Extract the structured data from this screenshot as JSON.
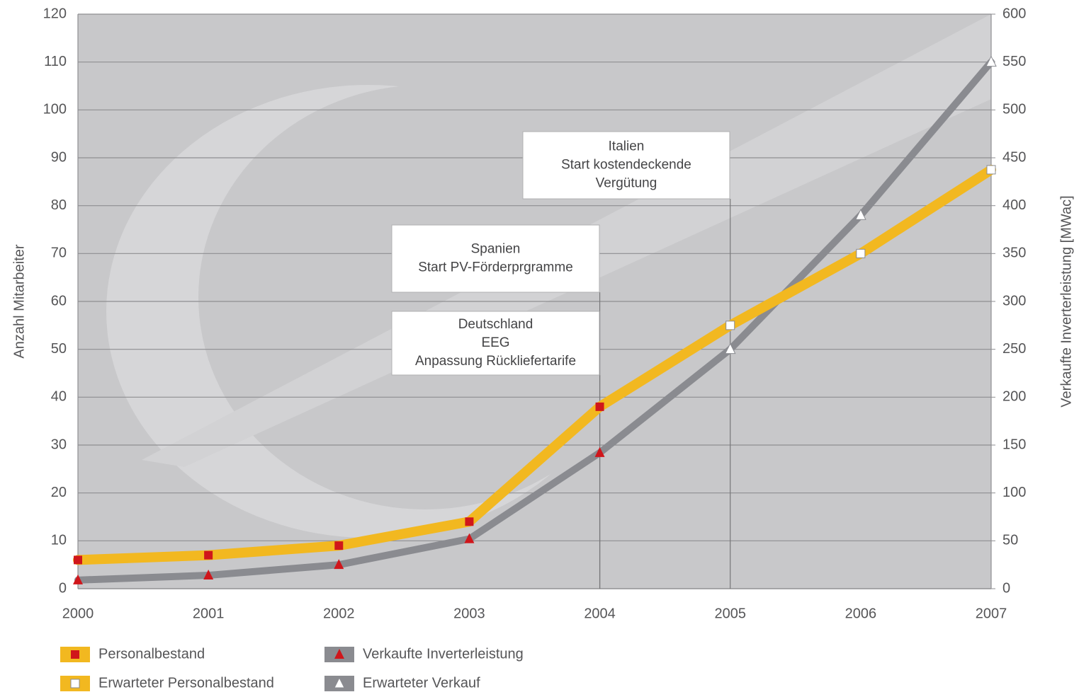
{
  "chart_data": {
    "type": "line",
    "categories": [
      "2000",
      "2001",
      "2002",
      "2003",
      "2004",
      "2005",
      "2006",
      "2007"
    ],
    "ylabel": "Anzahl Mitarbeiter",
    "y2label": "Verkaufte Inverterleistung [MWac]",
    "ylim": [
      0,
      120
    ],
    "yticks": [
      0,
      10,
      20,
      30,
      40,
      50,
      60,
      70,
      80,
      90,
      100,
      110,
      120
    ],
    "y2lim": [
      0,
      600
    ],
    "y2ticks": [
      0,
      50,
      100,
      150,
      200,
      250,
      300,
      350,
      400,
      450,
      500,
      550,
      600
    ],
    "grid": true,
    "legend": "bottom-left",
    "series": [
      {
        "name": "Personalbestand",
        "color": "#f2b820",
        "marker": "square",
        "marker_color": "#d0161b",
        "values": [
          6,
          7,
          9,
          14,
          38,
          null,
          null,
          null
        ]
      },
      {
        "name": "Verkaufte Inverterleistung",
        "color": "#8a8b90",
        "marker": "triangle",
        "marker_color": "#d0161b",
        "axis": "y2",
        "values": [
          9,
          14,
          25,
          52,
          142,
          null,
          null,
          null
        ]
      },
      {
        "name": "Erwarteter Personalbestand",
        "color": "#f2b820",
        "marker": "square",
        "marker_color": "#ffffff",
        "values": [
          null,
          null,
          null,
          null,
          null,
          55,
          70,
          87.5
        ]
      },
      {
        "name": "Erwarteter Verkauf",
        "color": "#8a8b90",
        "marker": "triangle",
        "marker_color": "#ffffff",
        "axis": "y2",
        "values": [
          null,
          null,
          null,
          null,
          null,
          250,
          390,
          550
        ]
      }
    ],
    "annotations": [
      {
        "x": "2005",
        "lines": [
          "Italien",
          "Start kostendeckende",
          "Vergütung"
        ]
      },
      {
        "x": "2004",
        "lines": [
          "Spanien",
          "Start PV-Förderprgramme"
        ]
      },
      {
        "x": "2004",
        "lines": [
          "Deutschland",
          "EEG",
          "Anpassung Rückliefertarife"
        ]
      }
    ]
  }
}
